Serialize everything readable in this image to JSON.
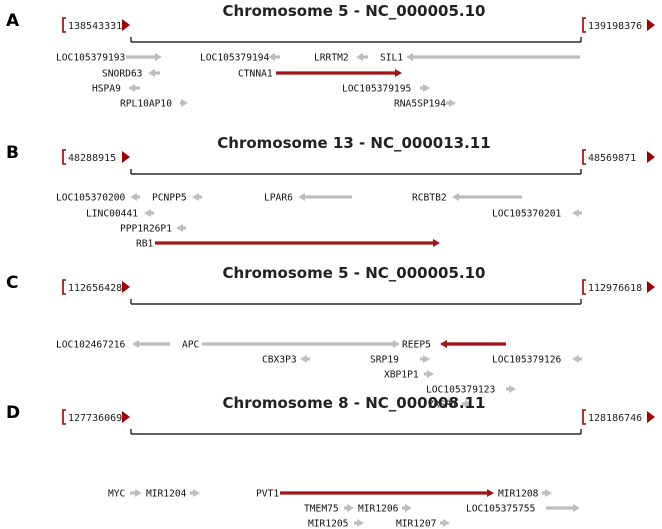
{
  "colors": {
    "gene_gray": "#bdbdbd",
    "gene_highlight": "#a01414",
    "axis": "#000000",
    "marker": "#a00000"
  },
  "panels": [
    {
      "letter": "A",
      "title": "Chromosome 5 - NC_000005.10",
      "start": "138543331",
      "end": "139198376",
      "genes": [
        {
          "label": "LOC105379193",
          "dir": "right",
          "highlight": false
        },
        {
          "label": "SNORD63",
          "dir": "left",
          "highlight": false
        },
        {
          "label": "HSPA9",
          "dir": "left",
          "highlight": false
        },
        {
          "label": "RPL10AP10",
          "dir": "right",
          "highlight": false
        },
        {
          "label": "LOC105379194",
          "dir": "left",
          "highlight": false
        },
        {
          "label": "CTNNA1",
          "dir": "right",
          "highlight": true
        },
        {
          "label": "LRRTM2",
          "dir": "left",
          "highlight": false
        },
        {
          "label": "SIL1",
          "dir": "left",
          "highlight": false
        },
        {
          "label": "LOC105379195",
          "dir": "right",
          "highlight": false
        },
        {
          "label": "RNA5SP194",
          "dir": "right",
          "highlight": false
        }
      ]
    },
    {
      "letter": "B",
      "title": "Chromosome 13 - NC_000013.11",
      "start": "48288915",
      "end": "48569871",
      "genes": [
        {
          "label": "LOC105370200",
          "dir": "left",
          "highlight": false
        },
        {
          "label": "PCNPP5",
          "dir": "left",
          "highlight": false
        },
        {
          "label": "LINC00441",
          "dir": "left",
          "highlight": false
        },
        {
          "label": "PPP1R26P1",
          "dir": "left",
          "highlight": false
        },
        {
          "label": "RB1",
          "dir": "right",
          "highlight": true
        },
        {
          "label": "LPAR6",
          "dir": "left",
          "highlight": false
        },
        {
          "label": "RCBTB2",
          "dir": "left",
          "highlight": false
        },
        {
          "label": "LOC105370201",
          "dir": "left",
          "highlight": false
        }
      ]
    },
    {
      "letter": "C",
      "title": "Chromosome 5 - NC_000005.10",
      "start": "112656428",
      "end": "112976618",
      "genes": [
        {
          "label": "LOC102467216",
          "dir": "left",
          "highlight": false
        },
        {
          "label": "APC",
          "dir": "right",
          "highlight": false
        },
        {
          "label": "CBX3P3",
          "dir": "left",
          "highlight": false
        },
        {
          "label": "REEP5",
          "dir": "left",
          "highlight": true
        },
        {
          "label": "SRP19",
          "dir": "right",
          "highlight": false
        },
        {
          "label": "XBP1P1",
          "dir": "right",
          "highlight": false
        },
        {
          "label": "LOC105379123",
          "dir": "right",
          "highlight": false
        },
        {
          "label": "ZRSR1",
          "dir": "right",
          "highlight": false
        },
        {
          "label": "LOC105379126",
          "dir": "left",
          "highlight": false
        }
      ]
    },
    {
      "letter": "D",
      "title": "Chromosome 8 - NC_000008.11",
      "start": "127736069",
      "end": "128186746",
      "genes": [
        {
          "label": "MYC",
          "dir": "right",
          "highlight": false
        },
        {
          "label": "MIR1204",
          "dir": "right",
          "highlight": false
        },
        {
          "label": "PVT1",
          "dir": "right",
          "highlight": true
        },
        {
          "label": "TMEM75",
          "dir": "right",
          "highlight": false
        },
        {
          "label": "MIR1205",
          "dir": "right",
          "highlight": false
        },
        {
          "label": "MIR1206",
          "dir": "right",
          "highlight": false
        },
        {
          "label": "MIR1207",
          "dir": "right",
          "highlight": false
        },
        {
          "label": "MIR1208",
          "dir": "right",
          "highlight": false
        },
        {
          "label": "LOC105375755",
          "dir": "right",
          "highlight": false
        }
      ]
    }
  ]
}
